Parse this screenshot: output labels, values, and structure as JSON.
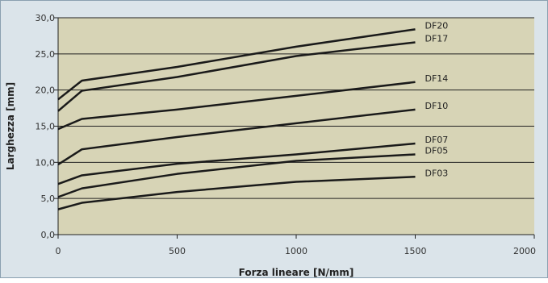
{
  "colors": {
    "plot_background": "#d7d4b6",
    "page_background": "#dbe4ea",
    "line": "#1a1a1a",
    "grid": "#222222"
  },
  "chart_data": {
    "type": "line",
    "xlabel": "Forza lineare [N/mm]",
    "ylabel": "Larghezza [mm]",
    "xlim": [
      0,
      2000
    ],
    "ylim": [
      0,
      30
    ],
    "x_ticks": [
      "0",
      "500",
      "1000",
      "1500",
      "2000"
    ],
    "y_ticks": [
      "0,0",
      "5,0",
      "10,0",
      "15,0",
      "20,0",
      "25,0",
      "30,0"
    ],
    "grid": "horizontal",
    "x": [
      0,
      100,
      500,
      1000,
      1500
    ],
    "series": [
      {
        "name": "DF20",
        "values": [
          18.7,
          21.3,
          23.2,
          26.0,
          28.4
        ]
      },
      {
        "name": "DF17",
        "values": [
          17.1,
          19.9,
          21.8,
          24.7,
          26.6
        ]
      },
      {
        "name": "DF14",
        "values": [
          14.6,
          16.0,
          17.3,
          19.2,
          21.1
        ]
      },
      {
        "name": "DF10",
        "values": [
          9.7,
          11.8,
          13.5,
          15.4,
          17.3
        ]
      },
      {
        "name": "DF07",
        "values": [
          7.0,
          8.2,
          9.8,
          11.1,
          12.6
        ]
      },
      {
        "name": "DF05",
        "values": [
          5.2,
          6.4,
          8.4,
          10.2,
          11.1
        ]
      },
      {
        "name": "DF03",
        "values": [
          3.5,
          4.4,
          5.9,
          7.3,
          8.0
        ]
      }
    ]
  }
}
